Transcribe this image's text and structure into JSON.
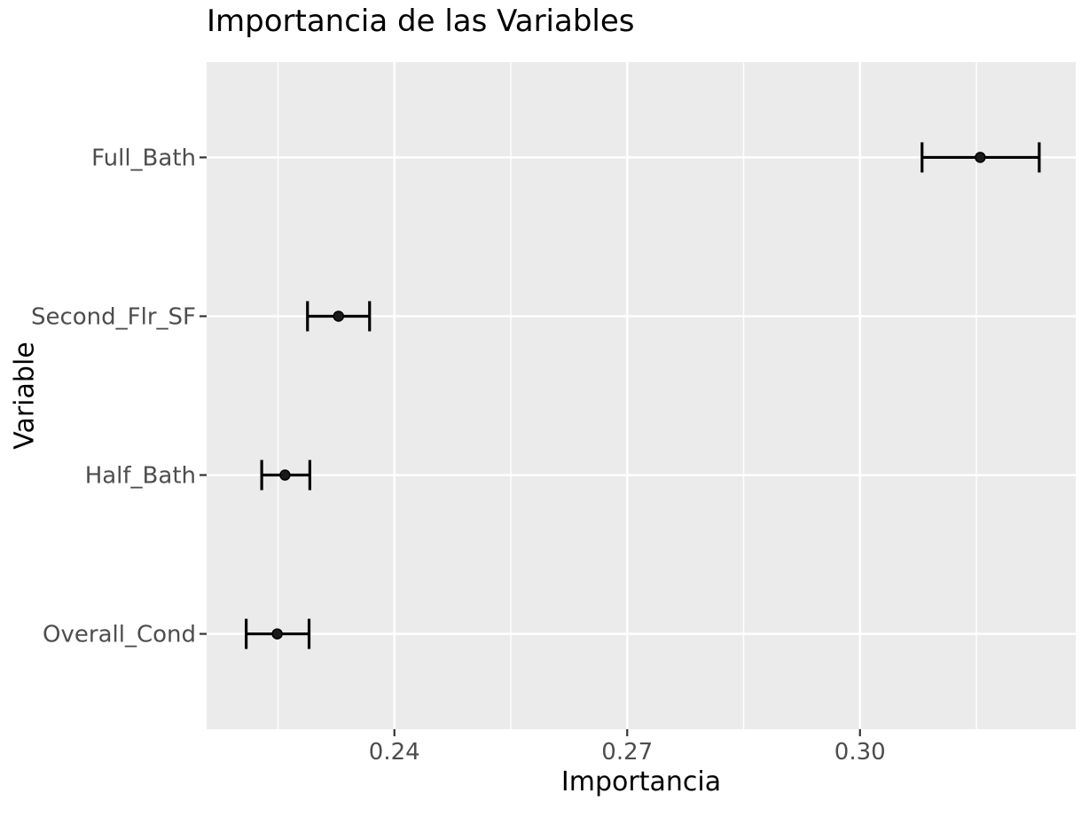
{
  "title": "Importancia de las Variables",
  "chart_data": {
    "type": "scatter",
    "subtype": "pointrange-dot-whisker",
    "orientation": "horizontal",
    "title": "Importancia de las Variables",
    "xlabel": "Importancia",
    "ylabel": "Variable",
    "categories": [
      "Full_Bath",
      "Second_Flr_SF",
      "Half_Bath",
      "Overall_Cond"
    ],
    "series": [
      {
        "name": "importance",
        "points": [
          {
            "variable": "Full_Bath",
            "importance": 0.3155,
            "low": 0.308,
            "high": 0.3231
          },
          {
            "variable": "Second_Flr_SF",
            "importance": 0.2328,
            "low": 0.2288,
            "high": 0.2368
          },
          {
            "variable": "Half_Bath",
            "importance": 0.2259,
            "low": 0.2229,
            "high": 0.2291
          },
          {
            "variable": "Overall_Cond",
            "importance": 0.2249,
            "low": 0.2209,
            "high": 0.229
          }
        ]
      }
    ],
    "xlim": [
      0.2158,
      0.3278
    ],
    "x_major_ticks": [
      0.24,
      0.27,
      0.3
    ],
    "x_tick_labels": [
      "0.24",
      "0.27",
      "0.30"
    ],
    "x_minor_ticks": [
      0.225,
      0.255,
      0.285,
      0.315
    ],
    "grid": "on",
    "legend": "none"
  },
  "colors": {
    "background": "#FFFFFF",
    "panel_bg": "#EBEBEB",
    "grid": "#FFFFFF",
    "tick_mark": "#333333",
    "tick_label": "#4D4D4D",
    "axis_title": "#000000",
    "title": "#000000",
    "range_line": "#000000",
    "point_fill": "#1A1A1A",
    "point_stroke": "#000000"
  }
}
